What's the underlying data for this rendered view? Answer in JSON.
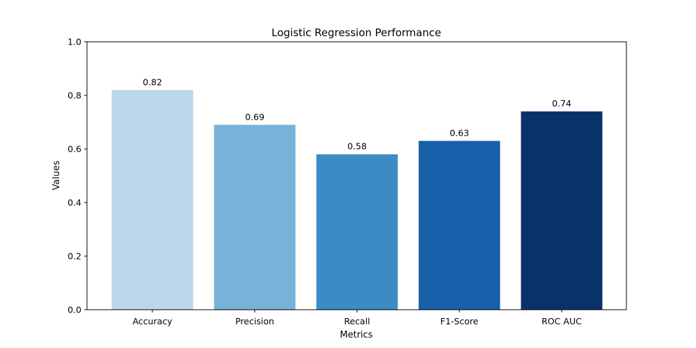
{
  "chart_data": {
    "type": "bar",
    "title": "Logistic Regression Performance",
    "xlabel": "Metrics",
    "ylabel": "Values",
    "categories": [
      "Accuracy",
      "Precision",
      "Recall",
      "F1-Score",
      "ROC AUC"
    ],
    "values": [
      0.82,
      0.69,
      0.58,
      0.63,
      0.74
    ],
    "data_labels": [
      "0.82",
      "0.69",
      "0.58",
      "0.63",
      "0.74"
    ],
    "colors": [
      "#bad6eb",
      "#77b3d8",
      "#3d8bc4",
      "#1660a9",
      "#09316c"
    ],
    "ylim": [
      0,
      1.0
    ],
    "yticks": [
      0.0,
      0.2,
      0.4,
      0.6,
      0.8,
      1.0
    ],
    "ytick_labels": [
      "0.0",
      "0.2",
      "0.4",
      "0.6",
      "0.8",
      "1.0"
    ],
    "grid": false,
    "legend": "none"
  }
}
